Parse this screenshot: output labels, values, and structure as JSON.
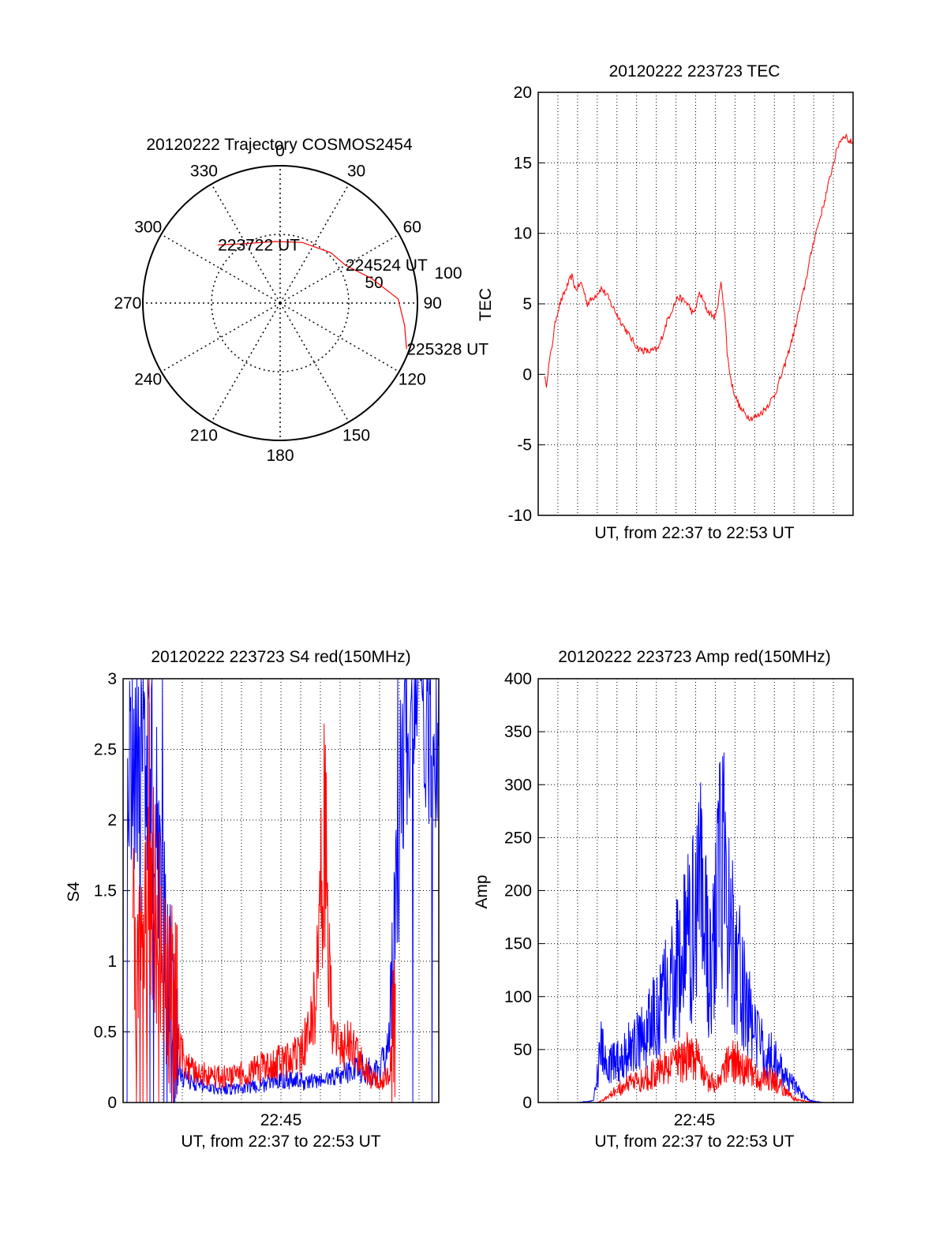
{
  "colors": {
    "red": "#ff0000",
    "blue": "#0000ff",
    "axis": "#000000"
  },
  "chart_data": [
    {
      "id": "trajectory",
      "type": "polar",
      "title": "20120222 Trajectory COSMOS2454",
      "angle_labels": [
        "0",
        "30",
        "60",
        "90",
        "120",
        "150",
        "180",
        "210",
        "240",
        "270",
        "300",
        "330"
      ],
      "radial_labels": [
        "50",
        "100"
      ],
      "rmax": 100,
      "track": {
        "color": "red",
        "points": [
          [
            313,
            62
          ],
          [
            330,
            50
          ],
          [
            355,
            45
          ],
          [
            20,
            47
          ],
          [
            45,
            52
          ],
          [
            60,
            55
          ],
          [
            75,
            69
          ],
          [
            88,
            86
          ],
          [
            100,
            92
          ],
          [
            110,
            98
          ]
        ]
      },
      "annotations": [
        {
          "text": "223722 UT",
          "az": 313,
          "r": 62
        },
        {
          "text": "224524 UT",
          "az": 60,
          "r": 55
        },
        {
          "text": "225328 UT",
          "az": 110,
          "r": 98
        }
      ]
    },
    {
      "id": "tec",
      "type": "line",
      "title": "20120222 223723 TEC",
      "xlabel": "UT, from 22:37 to 22:53 UT",
      "ylabel": "TEC",
      "xlim": [
        0,
        16
      ],
      "ylim": [
        -10,
        20
      ],
      "yticks": [
        -10,
        -5,
        0,
        5,
        10,
        15,
        20
      ],
      "grid": true,
      "series": [
        {
          "color": "red",
          "x": [
            0.3,
            0.4,
            0.5,
            0.7,
            0.9,
            1.1,
            1.4,
            1.7,
            1.9,
            2.2,
            2.5,
            2.9,
            3.2,
            3.5,
            3.7,
            4.1,
            4.6,
            5.1,
            5.6,
            6.1,
            6.6,
            7.1,
            7.6,
            7.9,
            8.2,
            8.6,
            9.0,
            9.3,
            9.5,
            9.6,
            9.8,
            10.0,
            10.3,
            10.6,
            10.8,
            11.1,
            11.5,
            12.0,
            12.5,
            13.0,
            13.5,
            14.0,
            14.5,
            15.0,
            15.3,
            15.6,
            15.8,
            16.0
          ],
          "y": [
            0.0,
            -0.9,
            0.3,
            2.0,
            4.0,
            5.0,
            6.0,
            7.0,
            6.0,
            6.5,
            5.0,
            5.6,
            6.1,
            5.6,
            5.0,
            4.0,
            2.8,
            1.8,
            1.6,
            1.8,
            4.0,
            5.5,
            5.0,
            4.2,
            5.8,
            4.5,
            4.0,
            6.5,
            4.0,
            1.5,
            -0.5,
            -1.5,
            -2.5,
            -2.9,
            -3.1,
            -3.0,
            -2.5,
            -1.5,
            0.5,
            3.0,
            6.0,
            9.5,
            12.0,
            15.0,
            16.5,
            17.0,
            16.5,
            16.5
          ]
        }
      ]
    },
    {
      "id": "s4",
      "type": "line",
      "title": "20120222 223723 S4 red(150MHz)",
      "xlabel": "UT, from 22:37 to 22:53 UT",
      "ylabel": "S4",
      "xtick_label": "22:45",
      "xlim": [
        0,
        16
      ],
      "ylim": [
        0,
        3
      ],
      "yticks": [
        0,
        0.5,
        1,
        1.5,
        2,
        2.5,
        3
      ],
      "grid": true,
      "series": [
        {
          "color": "blue",
          "x": [
            0.2,
            0.6,
            1.0,
            1.4,
            1.8,
            2.1,
            2.4,
            2.7,
            3.0,
            3.5,
            4.0,
            5.0,
            6.0,
            7.0,
            8.0,
            9.0,
            10.0,
            11.0,
            12.0,
            13.0,
            13.4,
            13.7,
            14.0,
            14.4,
            14.8,
            15.2,
            15.6,
            16.0
          ],
          "y": [
            2.6,
            2.4,
            2.6,
            2.2,
            1.8,
            1.4,
            0.6,
            0.3,
            0.18,
            0.15,
            0.12,
            0.1,
            0.1,
            0.12,
            0.18,
            0.15,
            0.15,
            0.2,
            0.25,
            0.2,
            0.4,
            1.0,
            2.0,
            2.6,
            2.8,
            2.8,
            2.6,
            2.7
          ]
        },
        {
          "color": "red",
          "x": [
            0.5,
            1.5,
            2.4,
            2.8,
            3.2,
            3.8,
            4.5,
            5.0,
            6.0,
            7.0,
            7.5,
            8.0,
            8.5,
            9.0,
            9.5,
            9.8,
            10.2,
            10.6,
            11.0,
            11.5,
            12.0,
            12.5,
            13.0,
            13.5,
            13.8
          ],
          "y": [
            1.0,
            1.5,
            0.8,
            0.4,
            0.25,
            0.2,
            0.2,
            0.18,
            0.2,
            0.25,
            0.25,
            0.3,
            0.3,
            0.35,
            0.5,
            0.8,
            2.0,
            0.5,
            0.35,
            0.45,
            0.3,
            0.18,
            0.15,
            0.2,
            0.7
          ]
        }
      ]
    },
    {
      "id": "amp",
      "type": "line",
      "title": "20120222 223723 Amp red(150MHz)",
      "xlabel": "UT, from 22:37 to 22:53 UT",
      "ylabel": "Amp",
      "xtick_label": "22:45",
      "xlim": [
        0,
        16
      ],
      "ylim": [
        0,
        400
      ],
      "yticks": [
        0,
        50,
        100,
        150,
        200,
        250,
        300,
        350,
        400
      ],
      "grid": true,
      "series": [
        {
          "color": "blue",
          "x": [
            0.0,
            2.0,
            2.8,
            3.0,
            3.2,
            3.5,
            4.0,
            5.0,
            6.0,
            6.8,
            7.5,
            8.0,
            8.2,
            8.5,
            8.8,
            9.0,
            9.2,
            9.6,
            10.0,
            10.5,
            11.0,
            11.5,
            12.0,
            12.5,
            13.0,
            13.4,
            13.8,
            14.5,
            16.0
          ],
          "y": [
            0,
            0,
            2,
            30,
            65,
            40,
            50,
            70,
            100,
            140,
            180,
            220,
            300,
            200,
            140,
            200,
            290,
            260,
            180,
            120,
            80,
            60,
            50,
            30,
            20,
            10,
            2,
            0,
            0
          ]
        },
        {
          "color": "red",
          "x": [
            0.0,
            3.0,
            3.5,
            4.0,
            5.0,
            6.0,
            7.0,
            7.5,
            8.0,
            8.5,
            9.0,
            9.5,
            10.0,
            10.5,
            11.0,
            11.5,
            12.0,
            12.5,
            13.0,
            13.5,
            14.0,
            16.0
          ],
          "y": [
            0,
            0,
            5,
            15,
            25,
            35,
            45,
            55,
            60,
            30,
            20,
            40,
            50,
            40,
            30,
            30,
            25,
            15,
            5,
            2,
            0,
            0
          ]
        }
      ]
    }
  ]
}
